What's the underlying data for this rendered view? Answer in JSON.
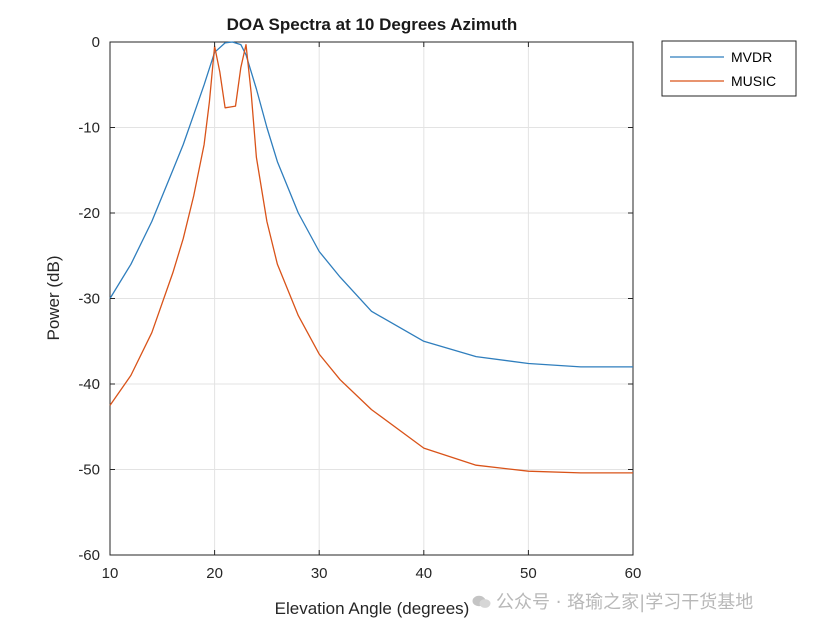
{
  "chart_data": {
    "type": "line",
    "title": "DOA Spectra at 10 Degrees Azimuth",
    "xlabel": "Elevation Angle (degrees)",
    "ylabel": "Power (dB)",
    "xlim": [
      10,
      60
    ],
    "ylim": [
      -60,
      0
    ],
    "xticks": [
      10,
      20,
      30,
      40,
      50,
      60
    ],
    "yticks": [
      0,
      -10,
      -20,
      -30,
      -40,
      -50,
      -60
    ],
    "grid": true,
    "legend_position": "outside-top-right",
    "series": [
      {
        "name": "MVDR",
        "color": "#2f7ebd",
        "x": [
          10,
          12,
          14,
          16,
          17,
          18,
          19,
          20,
          21,
          21.7,
          22.5,
          23,
          24,
          25,
          26,
          28,
          30,
          32,
          35,
          40,
          45,
          50,
          55,
          60
        ],
        "y": [
          -30,
          -26,
          -21,
          -15,
          -12,
          -8.5,
          -5,
          -1.2,
          -0.1,
          0,
          -0.3,
          -1.5,
          -5.5,
          -10,
          -14,
          -20,
          -24.5,
          -27.5,
          -31.5,
          -35,
          -36.8,
          -37.6,
          -38,
          -38
        ]
      },
      {
        "name": "MUSIC",
        "color": "#d95319",
        "x": [
          10,
          12,
          14,
          16,
          17,
          18,
          19,
          19.5,
          20,
          20.5,
          21,
          21.5,
          22,
          22.5,
          23,
          23.5,
          24,
          25,
          26,
          28,
          30,
          32,
          35,
          40,
          45,
          50,
          55,
          60
        ],
        "y": [
          -42.5,
          -39,
          -34,
          -27,
          -23,
          -18,
          -12,
          -7,
          -0.5,
          -3.5,
          -7.7,
          -7.6,
          -7.5,
          -3,
          -0.3,
          -6,
          -13.5,
          -21,
          -26,
          -32,
          -36.5,
          -39.5,
          -43,
          -47.5,
          -49.5,
          -50.2,
          -50.4,
          -50.4
        ]
      }
    ]
  },
  "watermark": {
    "text": "公众号 · 珞瑜之家|学习干货基地"
  }
}
